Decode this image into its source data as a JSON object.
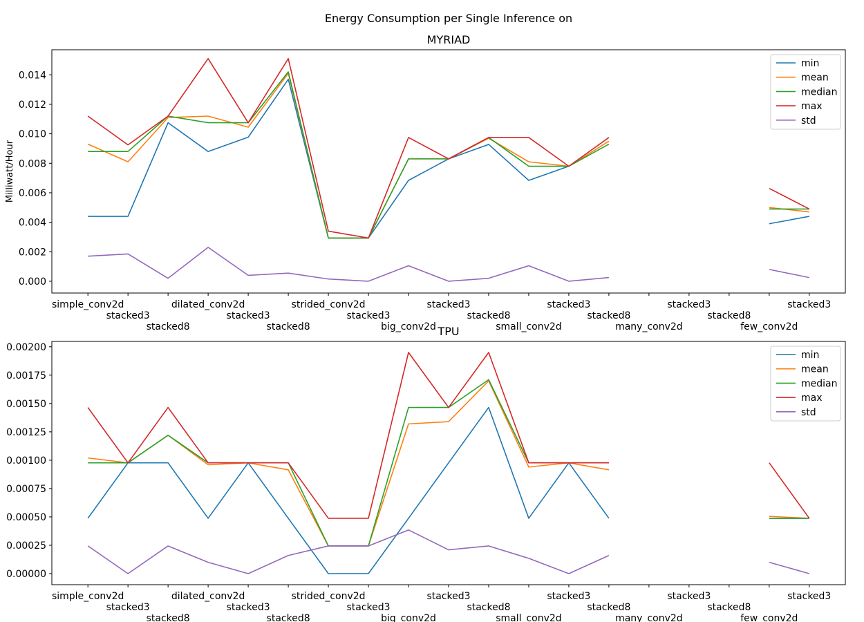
{
  "figure": {
    "suptitle": "Energy Consumption per Single Inference on"
  },
  "chart_data": [
    {
      "type": "line",
      "title": "MYRIAD",
      "xlabel": "",
      "ylabel": "Milliwatt/Hour",
      "categories": [
        "simple_conv2d",
        "stacked3",
        "stacked8",
        "dilated_conv2d",
        "stacked3",
        "stacked8",
        "strided_conv2d",
        "stacked3",
        "big_conv2d",
        "stacked3",
        "stacked8",
        "small_conv2d",
        "stacked3",
        "stacked8",
        "many_conv2d",
        "stacked3",
        "stacked8",
        "few_conv2d",
        "stacked3"
      ],
      "ylim": [
        -0.0008,
        0.0157
      ],
      "yticks": [
        0.0,
        0.002,
        0.004,
        0.006,
        0.008,
        0.01,
        0.012,
        0.014
      ],
      "ytick_labels": [
        "0.000",
        "0.002",
        "0.004",
        "0.006",
        "0.008",
        "0.010",
        "0.012",
        "0.014"
      ],
      "grid": false,
      "legend_position": "top-right",
      "series": [
        {
          "name": "min",
          "color": "#1f77b4",
          "values": [
            0.0044,
            0.0044,
            0.01075,
            0.0088,
            0.00977,
            0.0137,
            0.00293,
            0.00293,
            0.00684,
            0.0083,
            0.00928,
            0.00684,
            0.0078,
            null,
            null,
            null,
            null,
            0.0039,
            0.0044
          ]
        },
        {
          "name": "mean",
          "color": "#ff7f0e",
          "values": [
            0.0093,
            0.0081,
            0.0111,
            0.0112,
            0.01045,
            0.0141,
            0.00293,
            0.00293,
            0.0083,
            0.0083,
            0.0097,
            0.0081,
            0.0078,
            0.0095,
            null,
            null,
            null,
            0.005,
            0.0047
          ]
        },
        {
          "name": "median",
          "color": "#2ca02c",
          "values": [
            0.0088,
            0.0088,
            0.0112,
            0.01075,
            0.01075,
            0.0142,
            0.00293,
            0.00293,
            0.0083,
            0.0083,
            0.00975,
            0.0078,
            0.0078,
            0.0093,
            null,
            null,
            null,
            0.0049,
            0.0049
          ]
        },
        {
          "name": "max",
          "color": "#d62728",
          "values": [
            0.0112,
            0.00925,
            0.0112,
            0.0151,
            0.01075,
            0.0151,
            0.0034,
            0.00293,
            0.00975,
            0.0083,
            0.00975,
            0.00975,
            0.0078,
            0.00975,
            null,
            null,
            null,
            0.0063,
            0.0049
          ]
        },
        {
          "name": "std",
          "color": "#9467bd",
          "values": [
            0.0017,
            0.00185,
            0.0002,
            0.0023,
            0.0004,
            0.00055,
            0.00015,
            0.0,
            0.00105,
            0.0,
            0.0002,
            0.00105,
            0.0,
            0.00025,
            null,
            null,
            null,
            0.0008,
            0.00025
          ]
        }
      ]
    },
    {
      "type": "line",
      "title": "TPU",
      "xlabel": "",
      "ylabel": "",
      "categories": [
        "simple_conv2d",
        "stacked3",
        "stacked8",
        "dilated_conv2d",
        "stacked3",
        "stacked8",
        "strided_conv2d",
        "stacked3",
        "big_conv2d",
        "stacked3",
        "stacked8",
        "small_conv2d",
        "stacked3",
        "stacked8",
        "many_conv2d",
        "stacked3",
        "stacked8",
        "few_conv2d",
        "stacked3"
      ],
      "ylim": [
        -9.75e-05,
        0.0020475
      ],
      "yticks": [
        0.0,
        0.00025,
        0.0005,
        0.00075,
        0.001,
        0.00125,
        0.0015,
        0.00175,
        0.002
      ],
      "ytick_labels": [
        "0.00000",
        "0.00025",
        "0.00050",
        "0.00075",
        "0.00100",
        "0.00125",
        "0.00150",
        "0.00175",
        "0.00200"
      ],
      "grid": false,
      "legend_position": "top-right",
      "series": [
        {
          "name": "min",
          "color": "#1f77b4",
          "values": [
            0.000488,
            0.000977,
            0.000977,
            0.000488,
            0.000977,
            0.000488,
            0.0,
            0.0,
            0.000488,
            0.000977,
            0.001465,
            0.000488,
            0.000977,
            0.000488,
            null,
            null,
            null,
            0.000488,
            0.000488
          ]
        },
        {
          "name": "mean",
          "color": "#ff7f0e",
          "values": [
            0.00102,
            0.000977,
            0.00122,
            0.00096,
            0.000977,
            0.000915,
            0.000244,
            0.000244,
            0.00132,
            0.00134,
            0.0017,
            0.00094,
            0.000977,
            0.000915,
            null,
            null,
            null,
            0.000505,
            0.000488
          ]
        },
        {
          "name": "median",
          "color": "#2ca02c",
          "values": [
            0.000977,
            0.000977,
            0.00122,
            0.000977,
            0.000977,
            0.000977,
            0.000244,
            0.000244,
            0.001465,
            0.001465,
            0.00171,
            0.000977,
            0.000977,
            0.000977,
            null,
            null,
            null,
            0.000488,
            0.000488
          ]
        },
        {
          "name": "max",
          "color": "#d62728",
          "values": [
            0.001465,
            0.000977,
            0.001465,
            0.000977,
            0.000977,
            0.000977,
            0.000488,
            0.000488,
            0.00195,
            0.001465,
            0.00195,
            0.000977,
            0.000977,
            0.000977,
            null,
            null,
            null,
            0.000977,
            0.000488
          ]
        },
        {
          "name": "std",
          "color": "#9467bd",
          "values": [
            0.000244,
            0.0,
            0.000244,
            0.0001,
            0.0,
            0.00016,
            0.000244,
            0.000244,
            0.000385,
            0.00021,
            0.000244,
            0.000135,
            0.0,
            0.00016,
            null,
            null,
            null,
            0.0001,
            0.0
          ]
        }
      ]
    }
  ]
}
